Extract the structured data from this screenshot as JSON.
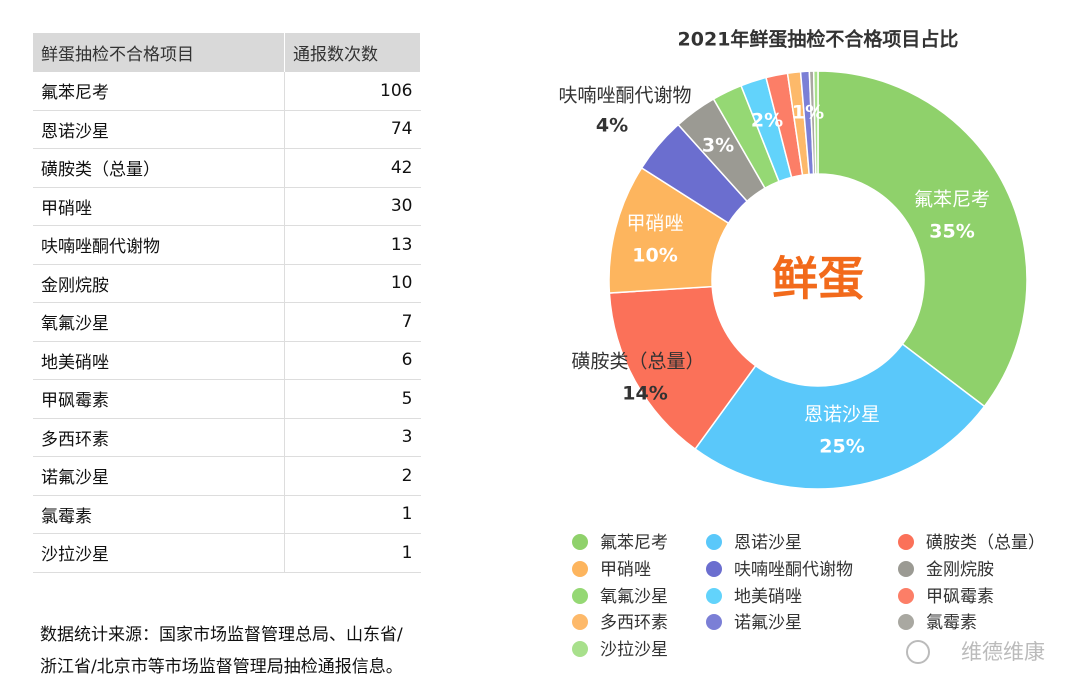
{
  "table": {
    "headers": [
      "鲜蛋抽检不合格项目",
      "通报数次数"
    ],
    "rows": [
      [
        "氟苯尼考",
        106
      ],
      [
        "恩诺沙星",
        74
      ],
      [
        "磺胺类（总量）",
        42
      ],
      [
        "甲硝唑",
        30
      ],
      [
        "呋喃唑酮代谢物",
        13
      ],
      [
        "金刚烷胺",
        10
      ],
      [
        "氧氟沙星",
        7
      ],
      [
        "地美硝唑",
        6
      ],
      [
        "甲砜霉素",
        5
      ],
      [
        "多西环素",
        3
      ],
      [
        "诺氟沙星",
        2
      ],
      [
        "氯霉素",
        1
      ],
      [
        "沙拉沙星",
        1
      ]
    ]
  },
  "source_note": [
    "数据统计来源：国家市场监督管理总局、山东省/",
    "浙江省/北京市等市场监督管理局抽检通报信息。"
  ],
  "watermark": "维德维康",
  "chart_data": {
    "type": "pie",
    "donut": true,
    "title": "2021年鲜蛋抽检不合格项目占比",
    "center_label": "鲜蛋",
    "categories": [
      "氟苯尼考",
      "恩诺沙星",
      "磺胺类（总量）",
      "甲硝唑",
      "呋喃唑酮代谢物",
      "金刚烷胺",
      "氧氟沙星",
      "地美硝唑",
      "甲砜霉素",
      "多西环素",
      "诺氟沙星",
      "氯霉素",
      "沙拉沙星"
    ],
    "values": [
      35.33,
      24.67,
      14,
      10,
      4.33,
      3.33,
      2.33,
      2,
      1.67,
      1,
      0.67,
      0.33,
      0.33
    ],
    "value_labels": [
      "35%",
      "25%",
      "14%",
      "10%",
      "4%",
      "3%",
      null,
      "2%",
      null,
      "1%",
      null,
      null,
      null
    ],
    "colors": [
      "#8fd16b",
      "#5ac8fa",
      "#fb7159",
      "#fdb55e",
      "#6b6ecf",
      "#9b9a93",
      "#95d874",
      "#62d3fb",
      "#fc7e67",
      "#fdb96a",
      "#7b7fd6",
      "#a9a8a1",
      "#a8e08c"
    ]
  }
}
